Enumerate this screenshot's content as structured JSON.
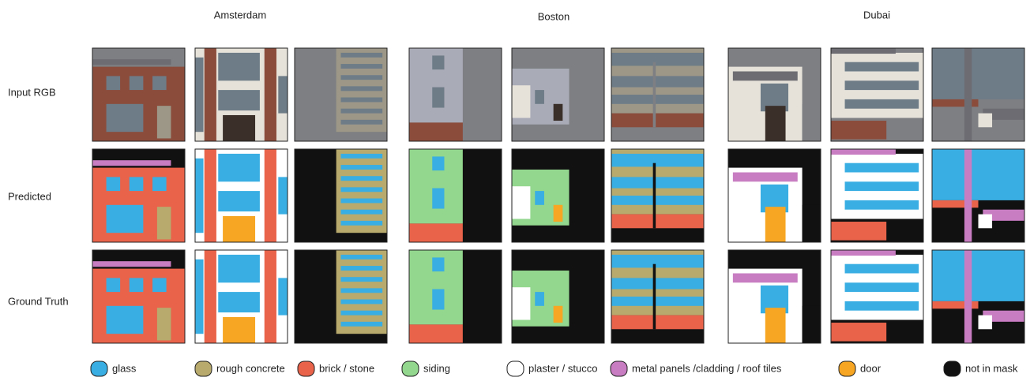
{
  "columns": [
    "Amsterdam",
    "Boston",
    "Dubai"
  ],
  "rows": [
    "Input RGB",
    "Predicted",
    "Ground Truth"
  ],
  "legend": [
    {
      "name": "glass",
      "color": "#38aee2"
    },
    {
      "name": "rough concrete",
      "color": "#b8aa6c"
    },
    {
      "name": "brick / stone",
      "color": "#e9634b"
    },
    {
      "name": "siding",
      "color": "#93d68d"
    },
    {
      "name": "plaster / stucco",
      "color": "#ffffff"
    },
    {
      "name": "metal panels /cladding / roof tiles",
      "color": "#c87cc1"
    },
    {
      "name": "door",
      "color": "#f6a623"
    },
    {
      "name": "not in mask",
      "color": "#111111"
    }
  ]
}
